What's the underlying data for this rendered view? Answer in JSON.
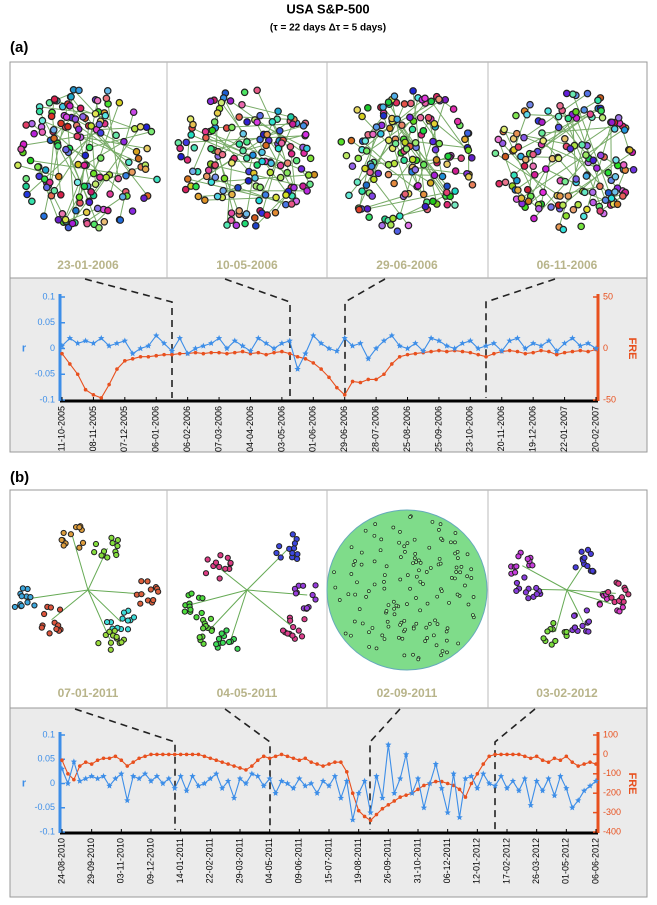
{
  "title": "USA S&P-500",
  "subtitle": "(τ = 22 days Δτ = 5 days)",
  "panel_labels": [
    "(a)",
    "(b)"
  ],
  "snapshots": [
    [
      "23-01-2006",
      "10-05-2006",
      "29-06-2006",
      "06-11-2006"
    ],
    [
      "07-01-2011",
      "04-05-2011",
      "02-09-2011",
      "03-02-2012"
    ]
  ],
  "chart_data": [
    {
      "type": "line",
      "categories": [
        "11-10-2005",
        null,
        null,
        null,
        "08-11-2005",
        null,
        null,
        null,
        "07-12-2005",
        null,
        null,
        null,
        "06-01-2006",
        null,
        null,
        null,
        "06-02-2006",
        null,
        null,
        null,
        "07-03-2006",
        null,
        null,
        null,
        "04-04-2006",
        null,
        null,
        null,
        "03-05-2006",
        null,
        null,
        null,
        "01-06-2006",
        null,
        null,
        null,
        "29-06-2006",
        null,
        null,
        null,
        "28-07-2006",
        null,
        null,
        null,
        "25-08-2006",
        null,
        null,
        null,
        "25-09-2006",
        null,
        null,
        null,
        "23-10-2006",
        null,
        null,
        null,
        "20-11-2006",
        null,
        null,
        null,
        "19-12-2006",
        null,
        null,
        null,
        "22-01-2007",
        null,
        null,
        null,
        "20-02-2007"
      ],
      "series": [
        {
          "name": "r",
          "color": "#3d8ee8",
          "axis": "y",
          "marker": "star",
          "values": [
            0.005,
            0.02,
            0.01,
            0.015,
            0.01,
            0.02,
            0.005,
            0.01,
            0.015,
            -0.01,
            0.0,
            0.005,
            0.025,
            0.01,
            -0.005,
            0.02,
            -0.01,
            0.0,
            0.005,
            0.01,
            0.02,
            0.0,
            0.015,
            0.005,
            -0.005,
            0.02,
            0.01,
            0.0,
            0.01,
            0.015,
            -0.04,
            -0.01,
            0.025,
            0.01,
            0.0,
            -0.005,
            0.02,
            0.005,
            0.01,
            -0.02,
            0.0,
            0.015,
            0.025,
            0.005,
            0.0,
            0.01,
            -0.005,
            0.02,
            0.015,
            0.005,
            0.0,
            0.01,
            0.015,
            0.0,
            0.005,
            0.01,
            -0.005,
            0.015,
            0.02,
            0.0,
            0.01,
            0.005,
            0.015,
            -0.005,
            0.01,
            0.02,
            0.005,
            0.01,
            0.0
          ]
        },
        {
          "name": "FRE",
          "color": "#e8501e",
          "axis": "y2",
          "marker": "dot",
          "values": [
            -5,
            -15,
            -25,
            -40,
            -45,
            -48,
            -35,
            -20,
            -12,
            -10,
            -8,
            -8,
            -7,
            -6,
            -6,
            -5,
            -5,
            -4,
            -5,
            -4,
            -4,
            -5,
            -4,
            -3,
            -5,
            -4,
            -6,
            -4,
            -3,
            -5,
            -8,
            -10,
            -14,
            -20,
            -28,
            -38,
            -45,
            -32,
            -33,
            -30,
            -30,
            -25,
            -15,
            -8,
            -6,
            -5,
            -4,
            -3,
            -2,
            -3,
            -2,
            -3,
            -4,
            -6,
            -8,
            -5,
            -3,
            -2,
            -3,
            -5,
            -4,
            -2,
            -3,
            -6,
            -4,
            -3,
            -2,
            -3,
            -1
          ]
        }
      ],
      "ylim": [
        -0.1,
        0.1
      ],
      "yticks": [
        -0.1,
        -0.05,
        0,
        0.05,
        0.1
      ],
      "y2lim": [
        -50,
        50
      ],
      "y2ticks": [
        -50,
        0,
        50
      ]
    },
    {
      "type": "line",
      "categories": [
        "24-08-2010",
        null,
        null,
        null,
        null,
        "29-09-2010",
        null,
        null,
        null,
        null,
        "03-11-2010",
        null,
        null,
        null,
        null,
        "09-12-2010",
        null,
        null,
        null,
        null,
        "14-01-2011",
        null,
        null,
        null,
        null,
        "22-02-2011",
        null,
        null,
        null,
        null,
        "29-03-2011",
        null,
        null,
        null,
        null,
        "04-05-2011",
        null,
        null,
        null,
        null,
        "09-06-2011",
        null,
        null,
        null,
        null,
        "15-07-2011",
        null,
        null,
        null,
        null,
        "19-08-2011",
        null,
        null,
        null,
        null,
        "26-09-2011",
        null,
        null,
        null,
        null,
        "31-10-2011",
        null,
        null,
        null,
        null,
        "06-12-2011",
        null,
        null,
        null,
        null,
        "12-01-2012",
        null,
        null,
        null,
        null,
        "17-02-2012",
        null,
        null,
        null,
        null,
        "26-03-2012",
        null,
        null,
        null,
        null,
        "01-05-2012",
        null,
        null,
        null,
        null,
        "06-06-2012"
      ],
      "series": [
        {
          "name": "r",
          "color": "#3d8ee8",
          "axis": "y",
          "marker": "star",
          "values": [
            0.03,
            0.0,
            0.045,
            0.005,
            0.01,
            0.015,
            0.01,
            0.015,
            -0.005,
            0.01,
            0.02,
            -0.035,
            0.015,
            0.01,
            0.02,
            0.005,
            0.015,
            0.0,
            0.01,
            -0.01,
            0.015,
            -0.015,
            0.015,
            -0.005,
            0.0,
            0.01,
            0.02,
            -0.01,
            0.005,
            -0.03,
            0.01,
            0.0,
            0.02,
            0.015,
            -0.005,
            0.01,
            -0.02,
            0.005,
            0.0,
            -0.01,
            0.01,
            -0.005,
            0.0,
            -0.02,
            0.005,
            -0.005,
            0.015,
            -0.03,
            0.005,
            -0.075,
            -0.02,
            0.005,
            -0.06,
            0.015,
            -0.03,
            0.08,
            -0.02,
            0.01,
            0.06,
            -0.02,
            0.01,
            -0.05,
            0.0,
            0.04,
            -0.01,
            -0.06,
            0.02,
            -0.07,
            0.01,
            0.015,
            -0.01,
            0.02,
            0.0,
            -0.005,
            0.015,
            -0.01,
            0.005,
            -0.015,
            0.01,
            -0.045,
            0.005,
            -0.015,
            0.01,
            -0.025,
            0.015,
            -0.01,
            -0.05,
            -0.035,
            -0.015,
            -0.005,
            0.005
          ]
        },
        {
          "name": "FRE",
          "color": "#e8501e",
          "axis": "y2",
          "marker": "dot",
          "values": [
            -30,
            -100,
            -130,
            -60,
            -40,
            -50,
            -30,
            -20,
            -20,
            -10,
            -30,
            -60,
            -40,
            -20,
            -10,
            0,
            0,
            0,
            0,
            0,
            0,
            0,
            0,
            0,
            -10,
            -20,
            -30,
            -40,
            -50,
            -60,
            -70,
            -80,
            -60,
            -30,
            -10,
            -20,
            -10,
            0,
            -10,
            -20,
            -30,
            -20,
            -40,
            -50,
            -60,
            -50,
            -40,
            -40,
            -90,
            -200,
            -290,
            -320,
            -340,
            -310,
            -280,
            -260,
            -240,
            -220,
            -210,
            -200,
            -180,
            -160,
            -150,
            -140,
            -140,
            -150,
            -160,
            -180,
            -220,
            -150,
            -100,
            -50,
            -10,
            0,
            0,
            0,
            0,
            0,
            -10,
            -20,
            -10,
            -30,
            -40,
            -20,
            -30,
            -10,
            -40,
            -60,
            -50,
            -40,
            -50
          ]
        }
      ],
      "ylim": [
        -0.1,
        0.1
      ],
      "yticks": [
        -0.1,
        -0.05,
        0,
        0.05,
        0.1
      ],
      "y2lim": [
        -400,
        100
      ],
      "y2ticks": [
        -400,
        -300,
        -200,
        -100,
        0,
        100
      ]
    }
  ]
}
